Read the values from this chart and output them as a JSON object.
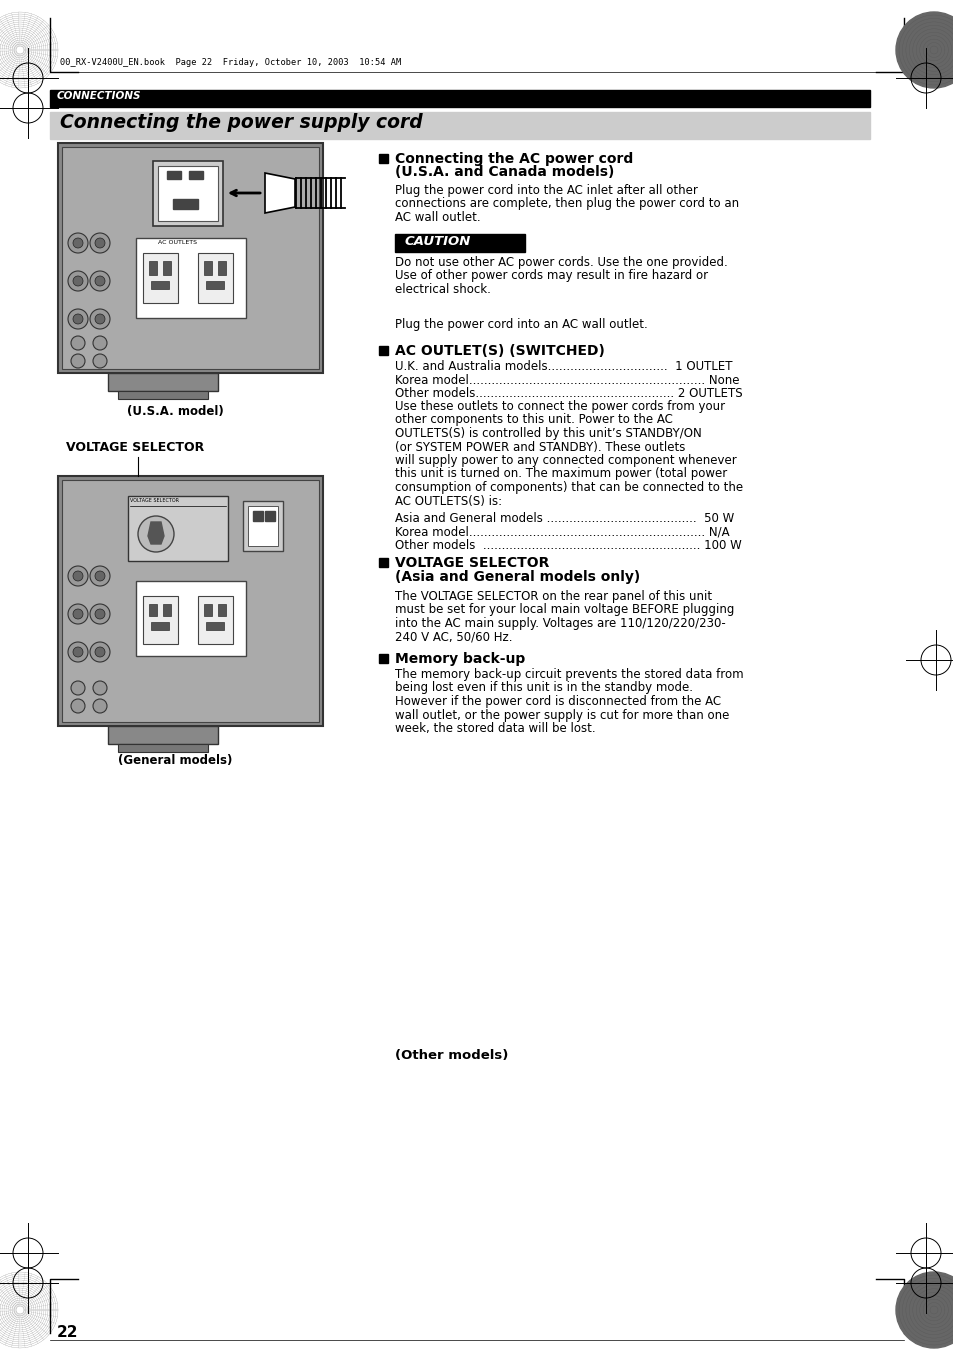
{
  "bg_color": "#ffffff",
  "page_num": "22",
  "header_text": "00_RX-V2400U_EN.book  Page 22  Friday, October 10, 2003  10:54 AM",
  "section_label": "CONNECTIONS",
  "title": "Connecting the power supply cord",
  "caution_label": "CAUTION",
  "label_usa": "(U.S.A. model)",
  "label_voltage_selector": "VOLTAGE SELECTOR",
  "label_general": "(General models)",
  "sec1_h1": "Connecting the AC power cord",
  "sec1_h2": "(U.S.A. and Canada models)",
  "sec1_body": "Plug the power cord into the AC inlet after all other\nconnections are complete, then plug the power cord to an\nAC wall outlet.",
  "caution_body": "Do not use other AC power cords. Use the one provided.\nUse of other power cords may result in fire hazard or\nelectrical shock.",
  "other_h": "(Other models)",
  "other_body": "Plug the power cord into an AC wall outlet.",
  "sec2_h": "AC OUTLET(S) (SWITCHED)",
  "sec2_items": "U.K. and Australia models................................  1 OUTLET\nKorea model............................................................... None\nOther models..................................................... 2 OUTLETS",
  "sec2_body": "Use these outlets to connect the power cords from your\nother components to this unit. Power to the AC\nOUTLETS(S) is controlled by this unit’s STANDBY/ON\n(or SYSTEM POWER and STANDBY). These outlets\nwill supply power to any connected component whenever\nthis unit is turned on. The maximum power (total power\nconsumption of components) that can be connected to the\nAC OUTLETS(S) is:",
  "sec2_watts": "Asia and General models ........................................  50 W\nKorea model............................................................... N/A\nOther models  .......................................................... 100 W",
  "sec3_h1": "VOLTAGE SELECTOR",
  "sec3_h2": "(Asia and General models only)",
  "sec3_body": "The VOLTAGE SELECTOR on the rear panel of this unit\nmust be set for your local main voltage BEFORE plugging\ninto the AC main supply. Voltages are 110/120/220/230-\n240 V AC, 50/60 Hz.",
  "sec4_h": "Memory back-up",
  "sec4_body": "The memory back-up circuit prevents the stored data from\nbeing lost even if this unit is in the standby mode.\nHowever if the power cord is disconnected from the AC\nwall outlet, or the power supply is cut for more than one\nweek, the stored data will be lost."
}
